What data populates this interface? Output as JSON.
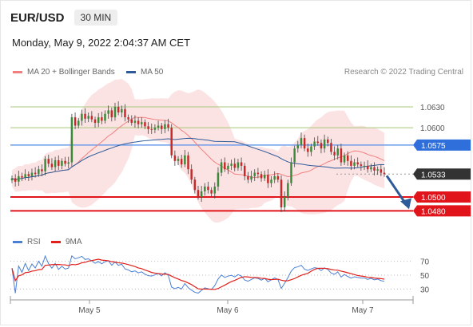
{
  "header": {
    "symbol": "EUR/USD",
    "timeframe": "30 MIN",
    "datetime": "Monday, May 9, 2022 2:04:37 AM CET"
  },
  "legend": {
    "items": [
      {
        "label": "MA 20 + Bollinger Bands",
        "color": "#f08080"
      },
      {
        "label": "MA 50",
        "color": "#2d5b9a"
      }
    ],
    "credit": "Research © 2022 Trading Central"
  },
  "rsi_legend": {
    "items": [
      {
        "label": "RSI",
        "color": "#4a7fd4"
      },
      {
        "label": "9MA",
        "color": "#e0201a"
      }
    ]
  },
  "chart_data": [
    {
      "type": "candlestick",
      "x_ticks": [
        "May 5",
        "May 6",
        "May 7"
      ],
      "levels": [
        {
          "label": "1.0630",
          "value": 1.063,
          "style": "green-line"
        },
        {
          "label": "1.0600",
          "value": 1.06,
          "style": "green-line"
        },
        {
          "label": "1.0575",
          "value": 1.0575,
          "style": "blue-line-tag"
        },
        {
          "label": "1.0533",
          "value": 1.0533,
          "style": "current-price-tag"
        },
        {
          "label": "1.0500",
          "value": 1.05,
          "style": "red-line-tag"
        },
        {
          "label": "1.0480",
          "value": 1.048,
          "style": "red-line-tag"
        }
      ],
      "ylim": [
        1.047,
        1.066
      ],
      "series": [
        {
          "name": "MA 20 + Bollinger Bands",
          "color": "#f08080"
        },
        {
          "name": "MA 50",
          "color": "#2d5b9a"
        }
      ],
      "closes": [
        1.0527,
        1.0522,
        1.053,
        1.0528,
        1.0533,
        1.053,
        1.0535,
        1.0533,
        1.054,
        1.0537,
        1.0555,
        1.0548,
        1.0543,
        1.0553,
        1.0545,
        1.0552,
        1.0548,
        1.055,
        1.0615,
        1.0603,
        1.061,
        1.062,
        1.0613,
        1.0617,
        1.0612,
        1.0607,
        1.0615,
        1.061,
        1.062,
        1.0625,
        1.0615,
        1.063,
        1.0622,
        1.0627,
        1.0615,
        1.0612,
        1.0607,
        1.061,
        1.0605,
        1.0608,
        1.0602,
        1.0598,
        1.0597,
        1.06,
        1.0603,
        1.0598,
        1.0605,
        1.06,
        1.056,
        1.0552,
        1.0555,
        1.0547,
        1.056,
        1.054,
        1.0525,
        1.051,
        1.05,
        1.0508,
        1.0515,
        1.051,
        1.0505,
        1.0515,
        1.0535,
        1.055,
        1.054,
        1.0545,
        1.0548,
        1.0542,
        1.055,
        1.0545,
        1.053,
        1.0525,
        1.053,
        1.0535,
        1.0533,
        1.0527,
        1.0532,
        1.052,
        1.0525,
        1.053,
        1.0525,
        1.0485,
        1.05,
        1.052,
        1.055,
        1.057,
        1.0575,
        1.0585,
        1.057,
        1.0565,
        1.0573,
        1.058,
        1.0578,
        1.057,
        1.0583,
        1.0578,
        1.0565,
        1.056,
        1.057,
        1.055,
        1.056,
        1.0552,
        1.0545,
        1.055,
        1.0547,
        1.0545,
        1.0545,
        1.054,
        1.0543,
        1.0538,
        1.054,
        1.0535,
        1.0533
      ],
      "yaxis_label": "",
      "xaxis_label": ""
    },
    {
      "type": "line",
      "name": "RSI panel",
      "y_ticks": [
        "70",
        "50",
        "30"
      ],
      "ylim": [
        20,
        80
      ],
      "series": [
        {
          "name": "RSI",
          "color": "#4a7fd4"
        },
        {
          "name": "9MA",
          "color": "#e0201a"
        }
      ]
    }
  ]
}
